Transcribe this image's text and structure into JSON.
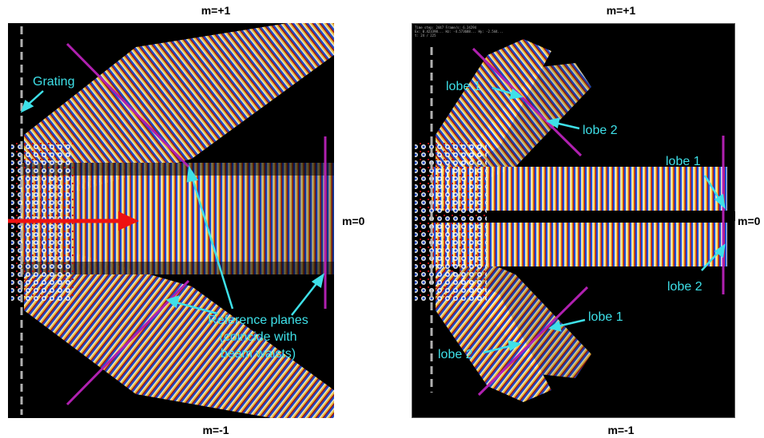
{
  "left": {
    "order_labels": {
      "top": "m=+1",
      "middle": "m=0",
      "bottom": "m=-1"
    },
    "annotations": {
      "grating": "Grating",
      "reference_planes": [
        "Reference planes",
        "(coincide with",
        "beam waists)"
      ]
    }
  },
  "right": {
    "order_labels": {
      "top": "m=+1",
      "middle": "m=0",
      "bottom": "m=-1"
    },
    "header_text": [
      "Time step: 2447  Frame/s: 6.24294",
      "Ex: 0.423398...  Hz: -4.573688...  Hy: -2.544...",
      "t: 24 / 225"
    ],
    "annotations": {
      "top": {
        "lobe1": "lobe 1",
        "lobe2": "lobe 2"
      },
      "middle": {
        "lobe1": "lobe 1",
        "lobe2": "lobe 2"
      },
      "bottom": {
        "lobe1": "lobe 1",
        "lobe2": "lobe 2"
      }
    }
  },
  "colors": {
    "beam_cool": "#1a4fd6",
    "beam_hot": "#ffd040",
    "beam_red": "#c01010",
    "reference_line": "#b020b0",
    "annotation": "#3ee0e8",
    "arrow_red": "#ee1111",
    "grating_line": "#b0b0b0"
  }
}
